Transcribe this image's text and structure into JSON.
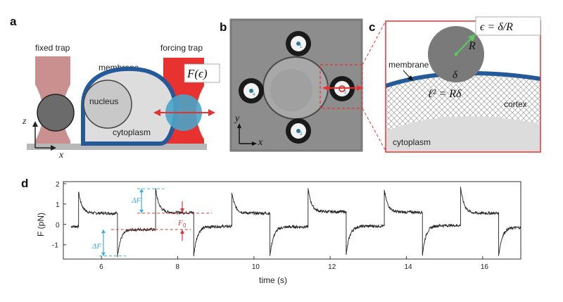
{
  "panels": {
    "a": {
      "letter": "a",
      "fixed_trap": "fixed trap",
      "forcing_trap": "forcing trap",
      "membrane": "membrane",
      "nucleus": "nucleus",
      "cytoplasm": "cytoplasm",
      "force": "F(ϵ)",
      "z_axis": "z",
      "x_axis": "x",
      "colors": {
        "trap_red": "#e8322f",
        "fixed_trap": "#b86a6a",
        "membrane": "#245a9a",
        "cell_fill": "#dddddd",
        "bead_blue": "#4aa3c8"
      }
    },
    "b": {
      "letter": "b",
      "y_axis": "y",
      "x_axis": "x",
      "bead_labels": [
        "1",
        "2",
        "3",
        "4"
      ]
    },
    "c": {
      "letter": "c",
      "equation": "ϵ = δ/R",
      "radius": "R",
      "delta": "δ",
      "membrane": "membrane",
      "length_eq": "ℓ² = Rδ",
      "cortex": "cortex",
      "cytoplasm": "cytoplasm"
    },
    "d": {
      "letter": "d",
      "dF_top": "ΔF",
      "dF_bottom": "ΔF",
      "F0": "F",
      "F0_sub": "0"
    }
  },
  "chart_data": {
    "type": "line",
    "xlabel": "time (s)",
    "ylabel": "F (pN)",
    "xlim": [
      5.0,
      17.0
    ],
    "ylim": [
      -1.7,
      2.1
    ],
    "xticks": [
      6,
      8,
      10,
      12,
      14,
      16
    ],
    "yticks": [
      2,
      1,
      0,
      -1
    ],
    "grid": false,
    "segments": [
      {
        "start": 5.2,
        "end": 5.4,
        "level": -0.1,
        "kind": "low"
      },
      {
        "start": 5.4,
        "end": 6.42,
        "peak": 1.6,
        "plateau": 0.55,
        "kind": "high"
      },
      {
        "start": 6.42,
        "end": 7.42,
        "trough": -1.55,
        "plateau": -0.25,
        "kind": "low"
      },
      {
        "start": 7.42,
        "end": 8.42,
        "peak": 1.75,
        "plateau": 0.58,
        "kind": "high"
      },
      {
        "start": 8.42,
        "end": 9.42,
        "trough": -1.55,
        "plateau": -0.1,
        "kind": "low"
      },
      {
        "start": 9.42,
        "end": 10.42,
        "peak": 1.55,
        "plateau": 0.55,
        "kind": "high"
      },
      {
        "start": 10.42,
        "end": 11.42,
        "trough": -1.55,
        "plateau": -0.12,
        "kind": "low"
      },
      {
        "start": 11.42,
        "end": 12.42,
        "peak": 1.75,
        "plateau": 0.62,
        "kind": "high"
      },
      {
        "start": 12.42,
        "end": 13.42,
        "trough": -1.5,
        "plateau": -0.08,
        "kind": "low"
      },
      {
        "start": 13.42,
        "end": 14.42,
        "peak": 1.7,
        "plateau": 0.6,
        "kind": "high"
      },
      {
        "start": 14.42,
        "end": 15.42,
        "trough": -1.5,
        "plateau": -0.05,
        "kind": "low"
      },
      {
        "start": 15.42,
        "end": 16.42,
        "peak": 1.85,
        "plateau": 0.55,
        "kind": "high"
      },
      {
        "start": 16.42,
        "end": 17.0,
        "trough": -1.55,
        "plateau": -0.15,
        "kind": "low"
      }
    ],
    "annotations": {
      "dF_top": {
        "x": 7.42,
        "from": 0.55,
        "to": 1.75
      },
      "F0": {
        "x": 8.12,
        "from": -0.25,
        "to": 0.58
      },
      "dF_bottom": {
        "x": 6.42,
        "from": -0.25,
        "to": -1.55
      }
    }
  }
}
